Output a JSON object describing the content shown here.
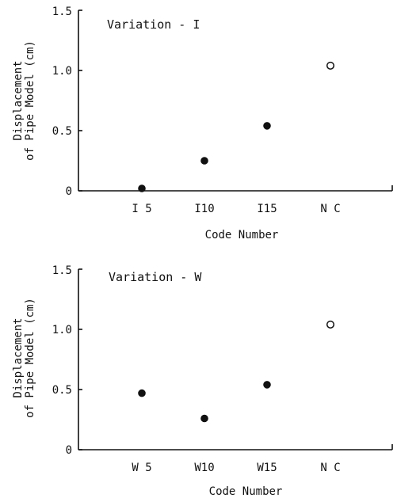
{
  "chart_data": [
    {
      "type": "scatter",
      "title": "Variation - I",
      "xlabel": "Code Number",
      "ylabel_lines": [
        "Displacement",
        "of Pipe Model (cm)"
      ],
      "categories": [
        "I 5",
        "I10",
        "I15",
        "N C"
      ],
      "values": [
        0.02,
        0.25,
        0.54,
        1.04
      ],
      "marker_fill": [
        "filled",
        "filled",
        "filled",
        "open"
      ],
      "yticks": [
        {
          "value": 0,
          "label": "0"
        },
        {
          "value": 0.5,
          "label": "0.5"
        },
        {
          "value": 1.0,
          "label": "1.0"
        },
        {
          "value": 1.5,
          "label": "1.5"
        }
      ],
      "ylim": [
        0,
        1.5
      ],
      "grid": false,
      "legend": "none"
    },
    {
      "type": "scatter",
      "title": "Variation - W",
      "xlabel": "Code Number",
      "ylabel_lines": [
        "Displacement",
        "of Pipe Model (cm)"
      ],
      "categories": [
        "W 5",
        "W10",
        "W15",
        "N C"
      ],
      "values": [
        0.47,
        0.26,
        0.54,
        1.04
      ],
      "marker_fill": [
        "filled",
        "filled",
        "filled",
        "open"
      ],
      "yticks": [
        {
          "value": 0,
          "label": "0"
        },
        {
          "value": 0.5,
          "label": "0.5"
        },
        {
          "value": 1.0,
          "label": "1.0"
        },
        {
          "value": 1.5,
          "label": "1.5"
        }
      ],
      "ylim": [
        0,
        1.5
      ],
      "grid": false,
      "legend": "none"
    }
  ]
}
